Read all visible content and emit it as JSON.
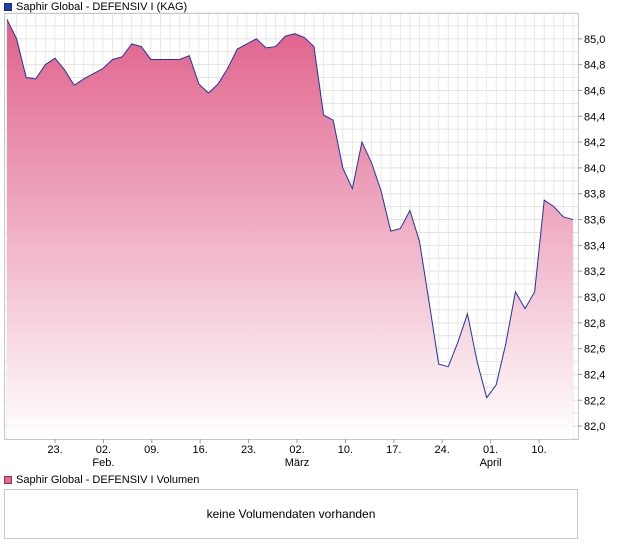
{
  "price_legend": {
    "label": "Saphir Global - DEFENSIV I (KAG)",
    "color": "#1f3fb0"
  },
  "volume_legend": {
    "label": "Saphir Global - DEFENSIV I Volumen",
    "color": "#e06a8a"
  },
  "volume_message": "keine Volumendaten vorhanden",
  "chart_data": {
    "type": "area",
    "series": [
      {
        "values": [
          85.15,
          85.0,
          84.7,
          84.69,
          84.8,
          84.85,
          84.76,
          84.64,
          84.69,
          84.73,
          84.77,
          84.84,
          84.86,
          84.96,
          84.94,
          84.84,
          84.84,
          84.84,
          84.84,
          84.87,
          84.65,
          84.58,
          84.65,
          84.77,
          84.92,
          84.96,
          85.0,
          84.93,
          84.94,
          85.02,
          85.04,
          85.01,
          84.94,
          84.41,
          84.37,
          84.0,
          83.84,
          84.2,
          84.04,
          83.82,
          83.51,
          83.53,
          83.67,
          83.43,
          82.96,
          82.48,
          82.46,
          82.65,
          82.87,
          82.5,
          82.22,
          82.32,
          82.64,
          83.04,
          82.91,
          83.04,
          83.75,
          83.7,
          83.62,
          83.6
        ]
      }
    ],
    "y_ticks": [
      "85,0",
      "84,8",
      "84,6",
      "84,4",
      "84,2",
      "84,0",
      "83,8",
      "83,6",
      "83,4",
      "83,2",
      "83,0",
      "82,8",
      "82,6",
      "82,4",
      "82,2",
      "82,0"
    ],
    "ylim": [
      81.9,
      85.2
    ],
    "x_ticks": [
      {
        "day": "23.",
        "month": ""
      },
      {
        "day": "02.",
        "month": "Feb."
      },
      {
        "day": "09.",
        "month": ""
      },
      {
        "day": "16.",
        "month": ""
      },
      {
        "day": "23.",
        "month": ""
      },
      {
        "day": "02.",
        "month": "März"
      },
      {
        "day": "10.",
        "month": ""
      },
      {
        "day": "17.",
        "month": ""
      },
      {
        "day": "24.",
        "month": ""
      },
      {
        "day": "01.",
        "month": "April"
      },
      {
        "day": "10.",
        "month": ""
      }
    ],
    "x_tick_index": [
      6,
      13,
      19,
      26,
      33,
      40,
      46,
      52,
      59,
      66,
      72
    ],
    "grid": true,
    "line_color": "#2233aa",
    "fill_top_color": "#e0608a",
    "fill_bottom_color": "#ffffff"
  }
}
